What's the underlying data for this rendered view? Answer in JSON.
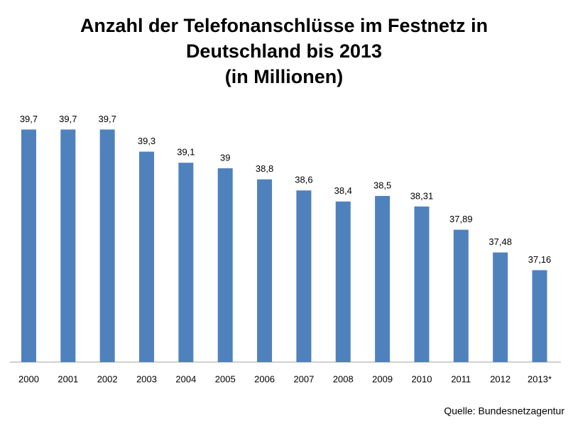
{
  "chart_data": {
    "type": "bar",
    "title": "Anzahl der Telefonanschlüsse im Festnetz in Deutschland bis 2013",
    "subtitle": "(in Millionen)",
    "categories": [
      "2000",
      "2001",
      "2002",
      "2003",
      "2004",
      "2005",
      "2006",
      "2007",
      "2008",
      "2009",
      "2010",
      "2011",
      "2012",
      "2013*"
    ],
    "values": [
      39.7,
      39.7,
      39.7,
      39.3,
      39.1,
      39,
      38.8,
      38.6,
      38.4,
      38.5,
      38.31,
      37.89,
      37.48,
      37.16
    ],
    "value_labels": [
      "39,7",
      "39,7",
      "39,7",
      "39,3",
      "39,1",
      "39",
      "38,8",
      "38,6",
      "38,4",
      "38,5",
      "38,31",
      "37,89",
      "37,48",
      "37,16"
    ],
    "color": "#4f81bd",
    "ylim": [
      35.5,
      40
    ],
    "source": "Quelle: Bundesnetzagentur"
  }
}
